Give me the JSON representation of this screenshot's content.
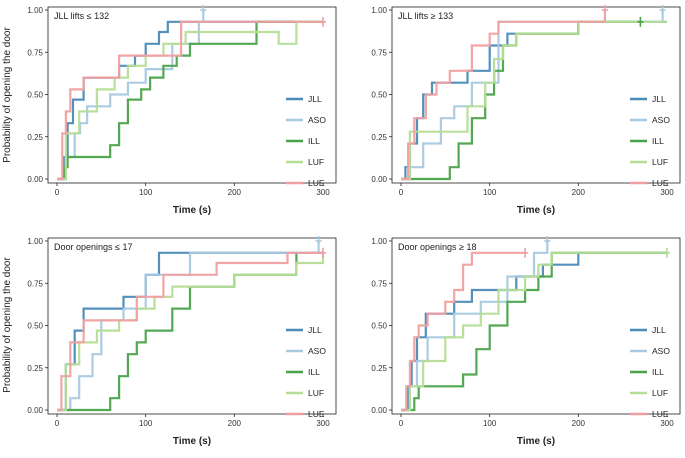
{
  "figure": {
    "ylabel": "Probability of opening the door",
    "xlabel": "Time (s)"
  },
  "chart_data": [
    {
      "type": "line",
      "title": "JLL lifts ≤ 132",
      "xlabel": "Time (s)",
      "ylabel": "Probability of opening the door",
      "xlim": [
        0,
        300
      ],
      "ylim": [
        0,
        1
      ],
      "xticks": [
        0,
        100,
        200,
        300
      ],
      "yticks": [
        0,
        0.25,
        0.5,
        0.75,
        1
      ],
      "legend": "bottom-right",
      "series": [
        {
          "name": "JLL",
          "color": "#4a8bb8",
          "x": [
            0,
            8,
            12,
            18,
            30,
            50,
            70,
            88,
            100,
            115,
            125,
            140,
            190,
            300
          ],
          "y": [
            0,
            0.13,
            0.33,
            0.47,
            0.6,
            0.6,
            0.67,
            0.73,
            0.8,
            0.87,
            0.93,
            0.93,
            0.93,
            0.93
          ]
        },
        {
          "name": "ASO",
          "color": "#a8c9e0",
          "x": [
            0,
            10,
            20,
            26,
            34,
            60,
            80,
            100,
            130,
            160,
            165
          ],
          "y": [
            0,
            0.13,
            0.27,
            0.33,
            0.43,
            0.5,
            0.57,
            0.65,
            0.8,
            0.93,
            1.0
          ]
        },
        {
          "name": "ILL",
          "color": "#4aa34a",
          "x": [
            0,
            8,
            12,
            25,
            60,
            70,
            80,
            95,
            105,
            120,
            135,
            150,
            225,
            300
          ],
          "y": [
            0,
            0.07,
            0.13,
            0.13,
            0.2,
            0.33,
            0.47,
            0.53,
            0.6,
            0.67,
            0.73,
            0.8,
            0.93,
            0.93
          ]
        },
        {
          "name": "LUF",
          "color": "#b5dd96",
          "x": [
            0,
            10,
            25,
            45,
            65,
            80,
            100,
            120,
            145,
            205,
            250,
            270,
            300
          ],
          "y": [
            0,
            0.27,
            0.4,
            0.53,
            0.6,
            0.67,
            0.73,
            0.8,
            0.87,
            0.87,
            0.8,
            0.93,
            0.93
          ]
        },
        {
          "name": "LUE",
          "color": "#f0a0a0",
          "x": [
            0,
            6,
            10,
            15,
            30,
            55,
            70,
            100,
            140,
            300
          ],
          "y": [
            0,
            0.27,
            0.4,
            0.53,
            0.6,
            0.6,
            0.73,
            0.73,
            0.93,
            0.93
          ]
        }
      ],
      "censor_marks": [
        {
          "series": "ASO",
          "x": 165,
          "y": 1.0
        },
        {
          "series": "LUE",
          "x": 300,
          "y": 0.93
        }
      ]
    },
    {
      "type": "line",
      "title": "JLL lifts ≥ 133",
      "xlabel": "Time (s)",
      "ylabel": "Probability of opening the door",
      "xlim": [
        0,
        300
      ],
      "ylim": [
        0,
        1
      ],
      "xticks": [
        0,
        100,
        200,
        300
      ],
      "yticks": [
        0,
        0.25,
        0.5,
        0.75,
        1
      ],
      "legend": "bottom-right",
      "series": [
        {
          "name": "JLL",
          "color": "#4a8bb8",
          "x": [
            0,
            5,
            10,
            18,
            25,
            35,
            60,
            75,
            100,
            120,
            150,
            200,
            300
          ],
          "y": [
            0,
            0.07,
            0.21,
            0.36,
            0.5,
            0.57,
            0.57,
            0.64,
            0.79,
            0.86,
            0.86,
            0.93,
            0.93
          ]
        },
        {
          "name": "ASO",
          "color": "#a8c9e0",
          "x": [
            0,
            10,
            25,
            45,
            60,
            80,
            110,
            295
          ],
          "y": [
            0,
            0.07,
            0.21,
            0.36,
            0.43,
            0.57,
            0.93,
            1.0
          ]
        },
        {
          "name": "ILL",
          "color": "#4aa34a",
          "x": [
            0,
            15,
            55,
            65,
            80,
            95,
            105,
            115,
            130,
            160,
            200,
            270
          ],
          "y": [
            0,
            0.0,
            0.07,
            0.21,
            0.36,
            0.5,
            0.64,
            0.79,
            0.86,
            0.86,
            0.93,
            0.93
          ]
        },
        {
          "name": "LUF",
          "color": "#b5dd96",
          "x": [
            0,
            10,
            40,
            75,
            95,
            105,
            115,
            130,
            200,
            300
          ],
          "y": [
            0,
            0.28,
            0.28,
            0.43,
            0.57,
            0.71,
            0.79,
            0.86,
            0.93,
            0.93
          ]
        },
        {
          "name": "LUE",
          "color": "#f0a0a0",
          "x": [
            0,
            8,
            15,
            28,
            40,
            55,
            80,
            100,
            110,
            150,
            230
          ],
          "y": [
            0,
            0.21,
            0.36,
            0.5,
            0.57,
            0.64,
            0.79,
            0.86,
            0.93,
            0.93,
            1.0
          ]
        }
      ],
      "censor_marks": [
        {
          "series": "LUE",
          "x": 230,
          "y": 1.0
        },
        {
          "series": "ASO",
          "x": 295,
          "y": 1.0
        },
        {
          "series": "ILL",
          "x": 270,
          "y": 0.93
        }
      ]
    },
    {
      "type": "line",
      "title": "Door openings ≤ 17",
      "xlabel": "Time (s)",
      "ylabel": "Probability of opening the door",
      "xlim": [
        0,
        300
      ],
      "ylim": [
        0,
        1
      ],
      "xticks": [
        0,
        100,
        200,
        300
      ],
      "yticks": [
        0,
        0.25,
        0.5,
        0.75,
        1
      ],
      "legend": "bottom-right",
      "series": [
        {
          "name": "JLL",
          "color": "#4a8bb8",
          "x": [
            0,
            10,
            20,
            30,
            60,
            75,
            100,
            115,
            200,
            300
          ],
          "y": [
            0,
            0.27,
            0.47,
            0.6,
            0.6,
            0.67,
            0.8,
            0.93,
            0.93,
            0.93
          ]
        },
        {
          "name": "ASO",
          "color": "#a8c9e0",
          "x": [
            0,
            15,
            25,
            40,
            50,
            75,
            100,
            150,
            295
          ],
          "y": [
            0,
            0.07,
            0.2,
            0.33,
            0.53,
            0.6,
            0.8,
            0.93,
            1.0
          ]
        },
        {
          "name": "ILL",
          "color": "#4aa34a",
          "x": [
            0,
            20,
            60,
            70,
            80,
            90,
            100,
            130,
            150,
            200,
            270
          ],
          "y": [
            0,
            0.0,
            0.07,
            0.2,
            0.33,
            0.4,
            0.47,
            0.6,
            0.73,
            0.8,
            0.93
          ]
        },
        {
          "name": "LUF",
          "color": "#b5dd96",
          "x": [
            0,
            10,
            25,
            45,
            70,
            90,
            110,
            130,
            200,
            270,
            300
          ],
          "y": [
            0,
            0.27,
            0.4,
            0.47,
            0.53,
            0.6,
            0.67,
            0.73,
            0.8,
            0.87,
            0.93
          ]
        },
        {
          "name": "LUE",
          "color": "#f0a0a0",
          "x": [
            0,
            5,
            15,
            30,
            75,
            90,
            120,
            180,
            260,
            300
          ],
          "y": [
            0,
            0.2,
            0.4,
            0.53,
            0.53,
            0.67,
            0.8,
            0.87,
            0.93,
            0.93
          ]
        }
      ],
      "censor_marks": [
        {
          "series": "ASO",
          "x": 295,
          "y": 1.0
        },
        {
          "series": "LUE",
          "x": 300,
          "y": 0.93
        }
      ]
    },
    {
      "type": "line",
      "title": "Door openings ≥ 18",
      "xlabel": "Time (s)",
      "ylabel": "Probability of opening the door",
      "xlim": [
        0,
        300
      ],
      "ylim": [
        0,
        1
      ],
      "xticks": [
        0,
        100,
        200,
        300
      ],
      "yticks": [
        0,
        0.25,
        0.5,
        0.75,
        1
      ],
      "legend": "bottom-right",
      "series": [
        {
          "name": "JLL",
          "color": "#4a8bb8",
          "x": [
            0,
            8,
            12,
            18,
            28,
            60,
            80,
            100,
            130,
            160,
            200,
            300
          ],
          "y": [
            0,
            0.14,
            0.29,
            0.43,
            0.57,
            0.64,
            0.71,
            0.71,
            0.79,
            0.86,
            0.93,
            0.93
          ]
        },
        {
          "name": "ASO",
          "color": "#a8c9e0",
          "x": [
            0,
            10,
            18,
            30,
            60,
            90,
            120,
            150,
            165
          ],
          "y": [
            0,
            0.14,
            0.29,
            0.43,
            0.57,
            0.64,
            0.79,
            0.93,
            1.0
          ]
        },
        {
          "name": "ILL",
          "color": "#4aa34a",
          "x": [
            0,
            15,
            20,
            60,
            70,
            85,
            100,
            120,
            140,
            155,
            170,
            300
          ],
          "y": [
            0,
            0.07,
            0.14,
            0.14,
            0.21,
            0.36,
            0.5,
            0.64,
            0.71,
            0.79,
            0.93,
            0.93
          ]
        },
        {
          "name": "LUF",
          "color": "#b5dd96",
          "x": [
            0,
            10,
            25,
            50,
            70,
            90,
            110,
            140,
            155,
            170,
            300
          ],
          "y": [
            0,
            0.14,
            0.29,
            0.43,
            0.5,
            0.57,
            0.71,
            0.79,
            0.86,
            0.93,
            0.93
          ]
        },
        {
          "name": "LUE",
          "color": "#f0a0a0",
          "x": [
            0,
            6,
            10,
            15,
            20,
            30,
            50,
            60,
            70,
            80,
            140
          ],
          "y": [
            0,
            0.14,
            0.29,
            0.43,
            0.5,
            0.57,
            0.64,
            0.71,
            0.86,
            0.93,
            0.93
          ]
        }
      ],
      "censor_marks": [
        {
          "series": "LUE",
          "x": 140,
          "y": 0.93
        },
        {
          "series": "ASO",
          "x": 165,
          "y": 1.0
        },
        {
          "series": "LUF",
          "x": 300,
          "y": 0.93
        }
      ]
    }
  ]
}
